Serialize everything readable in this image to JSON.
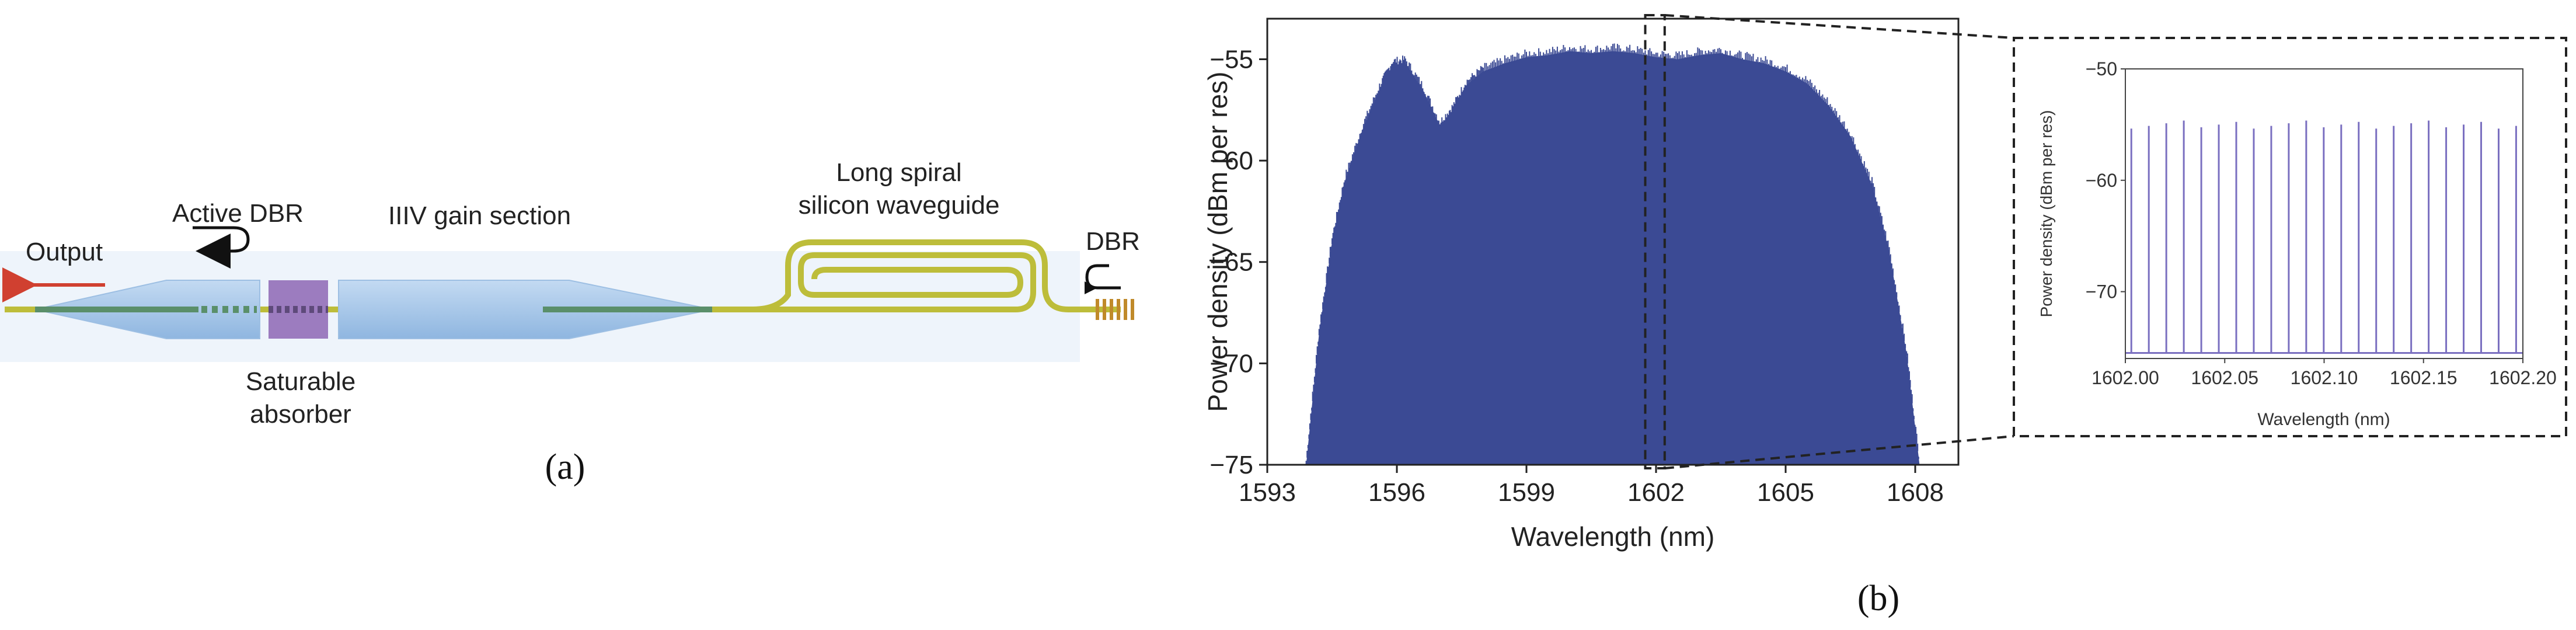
{
  "panel_a": {
    "label": "(a)",
    "labels": {
      "output": "Output",
      "active_dbr": "Active DBR",
      "gain_section": "IIIV gain section",
      "spiral_line1": "Long spiral",
      "spiral_line2": "silicon waveguide",
      "dbr": "DBR",
      "absorber_line1": "Saturable",
      "absorber_line2": "absorber"
    },
    "colors": {
      "waveguide": "#bdbd3a",
      "section": "#a8c8ea",
      "absorber": "#9c7cbf",
      "core": "#5a8f6a",
      "output_arrow": "#d04030"
    }
  },
  "panel_b": {
    "label": "(b)"
  },
  "chart_data": [
    {
      "type": "area",
      "title": "",
      "xlabel": "Wavelength (nm)",
      "ylabel": "Power density (dBm per res)",
      "xlim": [
        1593,
        1609
      ],
      "ylim": [
        -75,
        -53
      ],
      "xticks": [
        1593,
        1596,
        1599,
        1602,
        1605,
        1608
      ],
      "yticks": [
        -55,
        -60,
        -65,
        -70,
        -75
      ],
      "fill_color": "#3b4a94",
      "grid": false,
      "x": [
        1593.9,
        1594.2,
        1594.5,
        1594.8,
        1595.2,
        1595.6,
        1595.9,
        1596.2,
        1596.6,
        1597.0,
        1597.3,
        1597.6,
        1598.0,
        1598.5,
        1599.0,
        1599.5,
        1600.0,
        1600.5,
        1601.0,
        1601.5,
        1602.0,
        1602.5,
        1603.0,
        1603.5,
        1604.0,
        1604.5,
        1605.0,
        1605.5,
        1606.0,
        1606.5,
        1607.0,
        1607.4,
        1607.8,
        1608.1
      ],
      "y": [
        -75,
        -68.5,
        -64,
        -61,
        -58.5,
        -56.5,
        -55.3,
        -55.2,
        -56.5,
        -58.3,
        -57.5,
        -56.3,
        -55.6,
        -55.2,
        -54.9,
        -54.8,
        -54.6,
        -54.7,
        -54.6,
        -54.7,
        -54.9,
        -55.0,
        -54.8,
        -54.7,
        -55.0,
        -55.2,
        -55.6,
        -56.2,
        -57.3,
        -58.8,
        -61.2,
        -64.5,
        -69.5,
        -75
      ],
      "annotation": {
        "type": "zoom-box",
        "xrange": [
          1601.75,
          1602.2
        ],
        "target": "inset"
      }
    },
    {
      "type": "bar",
      "title": "",
      "xlabel": "Wavelength (nm)",
      "ylabel": "Power density (dBm per res)",
      "xlim": [
        1602.0,
        1602.2
      ],
      "ylim": [
        -76,
        -50
      ],
      "xticks": [
        1602.0,
        1602.05,
        1602.1,
        1602.15,
        1602.2
      ],
      "xtick_labels": [
        "1602.00",
        "1602.05",
        "1602.10",
        "1602.15",
        "1602.20"
      ],
      "yticks": [
        -50,
        -60,
        -70
      ],
      "line_color": "#7a6fc0",
      "baseline": -75.5,
      "comb_start": 1602.003,
      "comb_spacing": 0.0088,
      "comb_count": 23,
      "comb_peak": -55.0
    }
  ]
}
